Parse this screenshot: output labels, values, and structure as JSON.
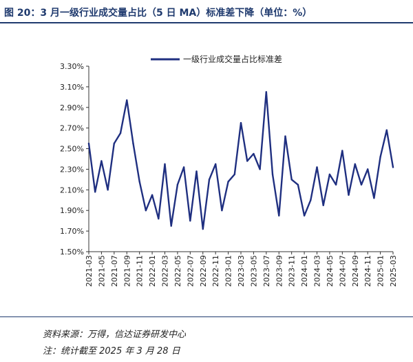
{
  "figure": {
    "title": "图 20：3 月一级行业成交量占比（5 日 MA）标准差下降（单位：%）",
    "source": "资料来源：万得，信达证券研发中心",
    "note": "注：统计截至 2025 年 3 月 28 日"
  },
  "chart_data": {
    "type": "line",
    "title": "",
    "xlabel": "",
    "ylabel": "",
    "ylim": [
      1.5,
      3.3
    ],
    "y_ticks": [
      "1.50%",
      "1.70%",
      "1.90%",
      "2.10%",
      "2.30%",
      "2.50%",
      "2.70%",
      "2.90%",
      "3.10%",
      "3.30%"
    ],
    "x_ticks": [
      "2021-03",
      "2021-05",
      "2021-07",
      "2021-09",
      "2021-11",
      "2022-01",
      "2022-03",
      "2022-05",
      "2022-07",
      "2022-09",
      "2022-11",
      "2023-01",
      "2023-03",
      "2023-05",
      "2023-07",
      "2023-09",
      "2023-11",
      "2024-01",
      "2024-03",
      "2024-05",
      "2024-07",
      "2024-09",
      "2024-11",
      "2025-01",
      "2025-03"
    ],
    "grid": false,
    "legend_position": "top",
    "line_color": "#1f2f80",
    "series": [
      {
        "name": "一级行业成交量占比标准差",
        "x": [
          "2021-03",
          "2021-04",
          "2021-05",
          "2021-06",
          "2021-07",
          "2021-08",
          "2021-09",
          "2021-10",
          "2021-11",
          "2021-12",
          "2022-01",
          "2022-02",
          "2022-03",
          "2022-04",
          "2022-05",
          "2022-06",
          "2022-07",
          "2022-08",
          "2022-09",
          "2022-10",
          "2022-11",
          "2022-12",
          "2023-01",
          "2023-02",
          "2023-03",
          "2023-04",
          "2023-05",
          "2023-06",
          "2023-07",
          "2023-08",
          "2023-09",
          "2023-10",
          "2023-11",
          "2023-12",
          "2024-01",
          "2024-02",
          "2024-03",
          "2024-04",
          "2024-05",
          "2024-06",
          "2024-07",
          "2024-08",
          "2024-09",
          "2024-10",
          "2024-11",
          "2024-12",
          "2025-01",
          "2025-02",
          "2025-03"
        ],
        "values": [
          2.55,
          2.08,
          2.38,
          2.1,
          2.55,
          2.65,
          2.97,
          2.55,
          2.18,
          1.9,
          2.05,
          1.82,
          2.35,
          1.75,
          2.15,
          2.32,
          1.8,
          2.28,
          1.72,
          2.2,
          2.35,
          1.9,
          2.18,
          2.25,
          2.75,
          2.38,
          2.45,
          2.3,
          3.05,
          2.25,
          1.85,
          2.62,
          2.2,
          2.15,
          1.85,
          2.0,
          2.32,
          1.95,
          2.25,
          2.15,
          2.48,
          2.05,
          2.35,
          2.15,
          2.3,
          2.02,
          2.42,
          2.68,
          2.32
        ]
      }
    ]
  }
}
